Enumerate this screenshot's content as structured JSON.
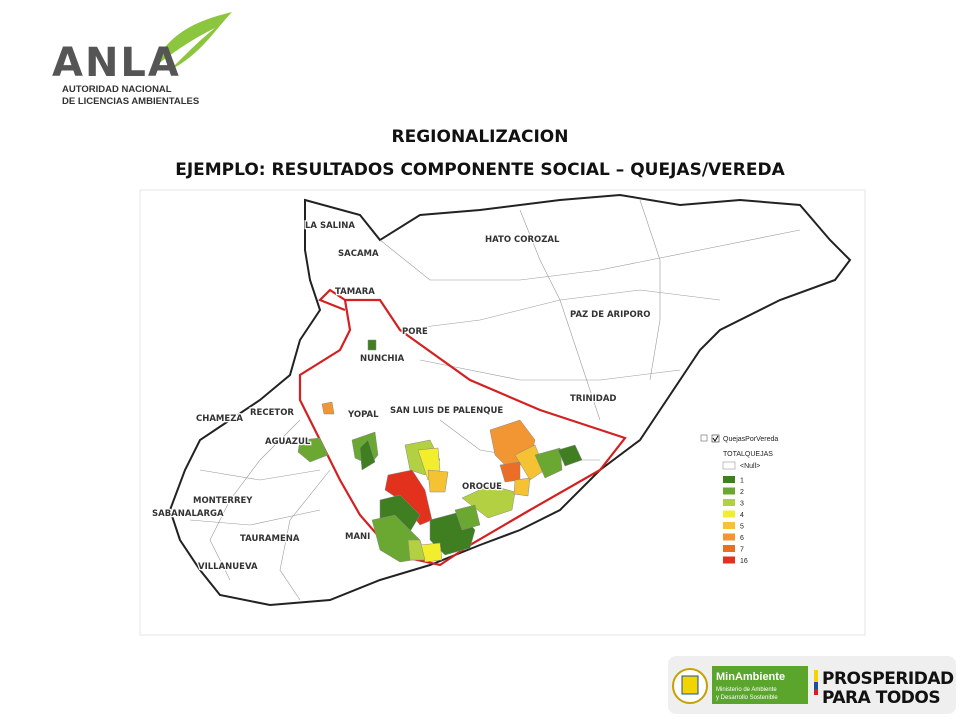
{
  "logo": {
    "name": "ANLA",
    "subtitle_1": "AUTORIDAD NACIONAL",
    "subtitle_2": "DE LICENCIAS AMBIENTALES"
  },
  "header": {
    "title": "REGIONALIZACION",
    "subtitle": "EJEMPLO: RESULTADOS COMPONENTE SOCIAL – QUEJAS/VEREDA"
  },
  "map": {
    "labels": [
      "LA SALINA",
      "SACAMA",
      "TAMARA",
      "PORE",
      "NUNCHIA",
      "HATO COROZAL",
      "PAZ DE ARIPORO",
      "TRINIDAD",
      "SAN LUIS DE PALENQUE",
      "YOPAL",
      "RECETOR",
      "CHAMEZA",
      "AGUAZUL",
      "OROCUE",
      "MONTERREY",
      "SABANALARGA",
      "MANI",
      "TAURAMENA",
      "VILLANUEVA"
    ],
    "legend": {
      "layer": "QuejasPorVereda",
      "field": "TOTALQUEJAS",
      "null_label": "<Null>",
      "items": [
        {
          "value": 1,
          "color": "#3f7f22"
        },
        {
          "value": 2,
          "color": "#6aa832"
        },
        {
          "value": 3,
          "color": "#b3d043"
        },
        {
          "value": 4,
          "color": "#f2ee2e"
        },
        {
          "value": 5,
          "color": "#f5c233"
        },
        {
          "value": 6,
          "color": "#f29633"
        },
        {
          "value": 7,
          "color": "#ea6e26"
        },
        {
          "value": 16,
          "color": "#e2321e"
        }
      ]
    }
  },
  "footer": {
    "ministry": "MinAmbiente",
    "ministry_sub_1": "Ministerio de Ambiente",
    "ministry_sub_2": "y Desarrollo Sostenible",
    "slogan_1": "PROSPERIDAD",
    "slogan_2": "PARA TODOS"
  }
}
